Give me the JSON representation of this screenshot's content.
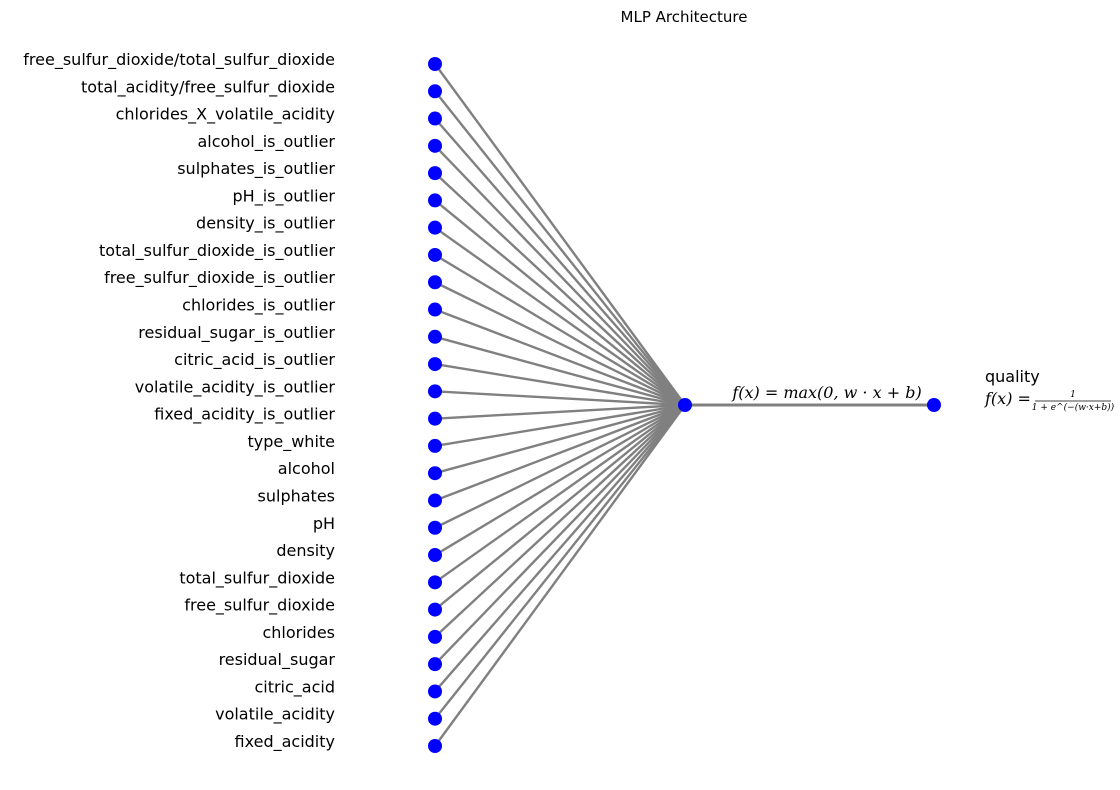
{
  "title": "MLP Architecture",
  "input_features": [
    "free_sulfur_dioxide/total_sulfur_dioxide",
    "total_acidity/free_sulfur_dioxide",
    "chlorides_X_volatile_acidity",
    "alcohol_is_outlier",
    "sulphates_is_outlier",
    "pH_is_outlier",
    "density_is_outlier",
    "total_sulfur_dioxide_is_outlier",
    "free_sulfur_dioxide_is_outlier",
    "chlorides_is_outlier",
    "residual_sugar_is_outlier",
    "citric_acid_is_outlier",
    "volatile_acidity_is_outlier",
    "fixed_acidity_is_outlier",
    "type_white",
    "alcohol",
    "sulphates",
    "pH",
    "density",
    "total_sulfur_dioxide",
    "free_sulfur_dioxide",
    "chlorides",
    "residual_sugar",
    "citric_acid",
    "volatile_acidity",
    "fixed_acidity"
  ],
  "hidden_activation": "f(x) = max(0, w · x + b)",
  "output": {
    "name": "quality",
    "activation_prefix": "f(x) =",
    "activation_numerator": "1",
    "activation_denominator": "1 + e^(−(w·x+b))"
  },
  "colors": {
    "node": "#0000ff",
    "edge": "#808080",
    "text": "#000000"
  }
}
